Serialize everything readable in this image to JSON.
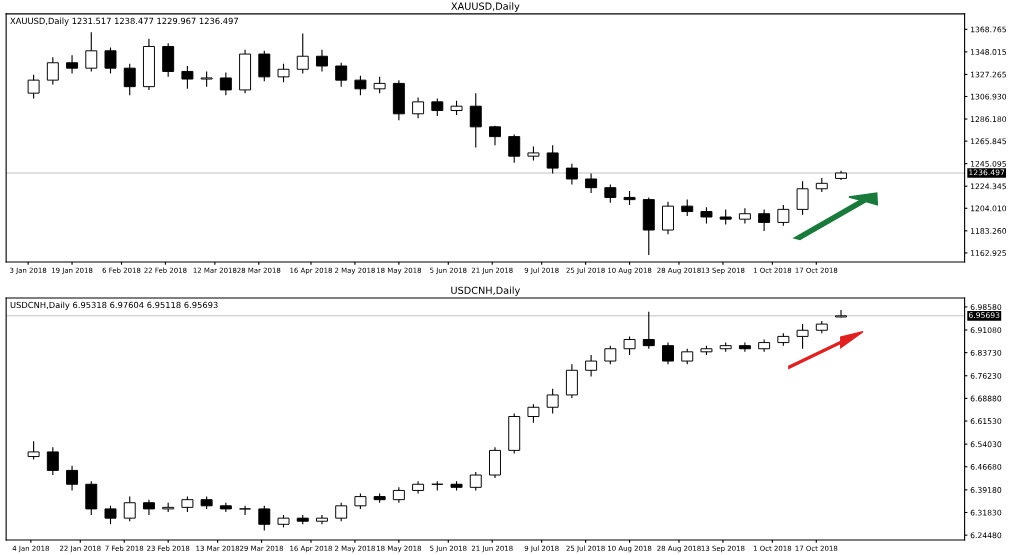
{
  "chart_data": [
    {
      "type": "candlestick",
      "title": "XAUUSD,Daily",
      "annotations": [
        "XAUUSD,Daily 1231.517 1238.477 1229.967 1236.497"
      ],
      "x": [
        "2018-01-05",
        "2018-01-12",
        "2018-01-19",
        "2018-01-26",
        "2018-02-02",
        "2018-02-09",
        "2018-02-16",
        "2018-02-23",
        "2018-03-02",
        "2018-03-09",
        "2018-03-16",
        "2018-03-23",
        "2018-03-30",
        "2018-04-06",
        "2018-04-13",
        "2018-04-20",
        "2018-04-27",
        "2018-05-04",
        "2018-05-11",
        "2018-05-18",
        "2018-05-25",
        "2018-06-01",
        "2018-06-08",
        "2018-06-15",
        "2018-06-22",
        "2018-06-29",
        "2018-07-06",
        "2018-07-13",
        "2018-07-20",
        "2018-07-27",
        "2018-08-03",
        "2018-08-10",
        "2018-08-17",
        "2018-08-24",
        "2018-08-31",
        "2018-09-07",
        "2018-09-14",
        "2018-09-21",
        "2018-09-28",
        "2018-10-05",
        "2018-10-12",
        "2018-10-19",
        "2018-10-26"
      ],
      "ohlc": [
        [
          1310,
          1327,
          1305,
          1322
        ],
        [
          1322,
          1343,
          1318,
          1338
        ],
        [
          1338,
          1345,
          1328,
          1333
        ],
        [
          1333,
          1366,
          1330,
          1349
        ],
        [
          1349,
          1352,
          1328,
          1333
        ],
        [
          1333,
          1337,
          1308,
          1316
        ],
        [
          1316,
          1360,
          1313,
          1353
        ],
        [
          1353,
          1356,
          1325,
          1330
        ],
        [
          1330,
          1335,
          1314,
          1323
        ],
        [
          1323,
          1330,
          1316,
          1324
        ],
        [
          1324,
          1329,
          1308,
          1313
        ],
        [
          1313,
          1350,
          1310,
          1346
        ],
        [
          1346,
          1349,
          1321,
          1325
        ],
        [
          1325,
          1337,
          1320,
          1332
        ],
        [
          1332,
          1365,
          1328,
          1344
        ],
        [
          1344,
          1350,
          1330,
          1335
        ],
        [
          1335,
          1338,
          1316,
          1322
        ],
        [
          1322,
          1326,
          1308,
          1314
        ],
        [
          1314,
          1325,
          1310,
          1319
        ],
        [
          1319,
          1322,
          1285,
          1291
        ],
        [
          1291,
          1306,
          1287,
          1302
        ],
        [
          1302,
          1305,
          1289,
          1294
        ],
        [
          1294,
          1303,
          1290,
          1298
        ],
        [
          1298,
          1310,
          1260,
          1279
        ],
        [
          1279,
          1280,
          1262,
          1270
        ],
        [
          1270,
          1272,
          1246,
          1252
        ],
        [
          1252,
          1261,
          1248,
          1255
        ],
        [
          1255,
          1262,
          1236,
          1241
        ],
        [
          1241,
          1245,
          1226,
          1231
        ],
        [
          1231,
          1236,
          1218,
          1223
        ],
        [
          1223,
          1226,
          1209,
          1214
        ],
        [
          1214,
          1220,
          1207,
          1212
        ],
        [
          1212,
          1214,
          1161,
          1184
        ],
        [
          1184,
          1210,
          1180,
          1206
        ],
        [
          1206,
          1212,
          1197,
          1201
        ],
        [
          1201,
          1205,
          1190,
          1196
        ],
        [
          1196,
          1203,
          1189,
          1194
        ],
        [
          1194,
          1204,
          1190,
          1199
        ],
        [
          1199,
          1203,
          1183,
          1191
        ],
        [
          1191,
          1207,
          1188,
          1203
        ],
        [
          1203,
          1229,
          1198,
          1222
        ],
        [
          1222,
          1232,
          1219,
          1227
        ],
        [
          1231.517,
          1238.477,
          1229.967,
          1236.497
        ]
      ],
      "xlim": [
        "2017-12-26",
        "2018-12-10"
      ],
      "xticks": [
        {
          "value": "2018-01-03",
          "label": "3 Jan 2018"
        },
        {
          "value": "2018-01-19",
          "label": "19 Jan 2018"
        },
        {
          "value": "2018-02-06",
          "label": "6 Feb 2018"
        },
        {
          "value": "2018-02-22",
          "label": "22 Feb 2018"
        },
        {
          "value": "2018-03-12",
          "label": "12 Mar 2018"
        },
        {
          "value": "2018-03-28",
          "label": "28 Mar 2018"
        },
        {
          "value": "2018-04-16",
          "label": "16 Apr 2018"
        },
        {
          "value": "2018-05-02",
          "label": "2 May 2018"
        },
        {
          "value": "2018-05-18",
          "label": "18 May 2018"
        },
        {
          "value": "2018-06-05",
          "label": "5 Jun 2018"
        },
        {
          "value": "2018-06-21",
          "label": "21 Jun 2018"
        },
        {
          "value": "2018-07-09",
          "label": "9 Jul 2018"
        },
        {
          "value": "2018-07-25",
          "label": "25 Jul 2018"
        },
        {
          "value": "2018-08-10",
          "label": "10 Aug 2018"
        },
        {
          "value": "2018-08-28",
          "label": "28 Aug 2018"
        },
        {
          "value": "2018-09-13",
          "label": "13 Sep 2018"
        },
        {
          "value": "2018-10-01",
          "label": "1 Oct 2018"
        },
        {
          "value": "2018-10-17",
          "label": "17 Oct 2018"
        }
      ],
      "ylim": [
        1154.6,
        1383
      ],
      "yticks": [
        {
          "value": 1162.925,
          "label": "1162.925"
        },
        {
          "value": 1183.26,
          "label": "1183.260"
        },
        {
          "value": 1204.01,
          "label": "1204.010"
        },
        {
          "value": 1224.345,
          "label": "1224.345"
        },
        {
          "value": 1245.095,
          "label": "1245.095"
        },
        {
          "value": 1265.845,
          "label": "1265.845"
        },
        {
          "value": 1286.18,
          "label": "1286.180"
        },
        {
          "value": 1306.93,
          "label": "1306.930"
        },
        {
          "value": 1327.265,
          "label": "1327.265"
        },
        {
          "value": 1348.015,
          "label": "1348.015"
        },
        {
          "value": 1368.765,
          "label": "1368.765"
        }
      ],
      "ref_lines": [
        {
          "axis": "y",
          "value": 1236.497,
          "label": "1236.497",
          "color": "#c0c0c0"
        }
      ],
      "grid": false,
      "legend": false
    },
    {
      "type": "candlestick",
      "title": "USDCNH,Daily",
      "annotations": [
        "USDCNH,Daily 6.95318 6.97604 6.95118 6.95693"
      ],
      "x": [
        "2018-01-05",
        "2018-01-12",
        "2018-01-19",
        "2018-01-26",
        "2018-02-02",
        "2018-02-09",
        "2018-02-16",
        "2018-02-23",
        "2018-03-02",
        "2018-03-09",
        "2018-03-16",
        "2018-03-23",
        "2018-03-30",
        "2018-04-06",
        "2018-04-13",
        "2018-04-20",
        "2018-04-27",
        "2018-05-04",
        "2018-05-11",
        "2018-05-18",
        "2018-05-25",
        "2018-06-01",
        "2018-06-08",
        "2018-06-15",
        "2018-06-22",
        "2018-06-29",
        "2018-07-06",
        "2018-07-13",
        "2018-07-20",
        "2018-07-27",
        "2018-08-03",
        "2018-08-10",
        "2018-08-17",
        "2018-08-24",
        "2018-08-31",
        "2018-09-07",
        "2018-09-14",
        "2018-09-21",
        "2018-09-28",
        "2018-10-05",
        "2018-10-12",
        "2018-10-19",
        "2018-10-26"
      ],
      "ohlc": [
        [
          6.5,
          6.55,
          6.49,
          6.515
        ],
        [
          6.515,
          6.53,
          6.44,
          6.455
        ],
        [
          6.455,
          6.47,
          6.39,
          6.41
        ],
        [
          6.41,
          6.42,
          6.31,
          6.33
        ],
        [
          6.33,
          6.34,
          6.28,
          6.3
        ],
        [
          6.3,
          6.37,
          6.29,
          6.35
        ],
        [
          6.35,
          6.36,
          6.31,
          6.33
        ],
        [
          6.33,
          6.35,
          6.32,
          6.335
        ],
        [
          6.335,
          6.37,
          6.32,
          6.36
        ],
        [
          6.36,
          6.37,
          6.33,
          6.34
        ],
        [
          6.34,
          6.35,
          6.32,
          6.33
        ],
        [
          6.33,
          6.34,
          6.31,
          6.33
        ],
        [
          6.33,
          6.34,
          6.26,
          6.28
        ],
        [
          6.28,
          6.31,
          6.27,
          6.3
        ],
        [
          6.3,
          6.31,
          6.28,
          6.29
        ],
        [
          6.29,
          6.31,
          6.28,
          6.3
        ],
        [
          6.3,
          6.35,
          6.29,
          6.34
        ],
        [
          6.34,
          6.38,
          6.33,
          6.37
        ],
        [
          6.37,
          6.38,
          6.35,
          6.36
        ],
        [
          6.36,
          6.4,
          6.35,
          6.39
        ],
        [
          6.39,
          6.42,
          6.38,
          6.41
        ],
        [
          6.41,
          6.42,
          6.39,
          6.41
        ],
        [
          6.41,
          6.42,
          6.39,
          6.4
        ],
        [
          6.4,
          6.45,
          6.39,
          6.44
        ],
        [
          6.44,
          6.53,
          6.43,
          6.52
        ],
        [
          6.52,
          6.64,
          6.51,
          6.63
        ],
        [
          6.63,
          6.67,
          6.61,
          6.66
        ],
        [
          6.66,
          6.72,
          6.64,
          6.7
        ],
        [
          6.7,
          6.8,
          6.69,
          6.78
        ],
        [
          6.78,
          6.83,
          6.76,
          6.81
        ],
        [
          6.81,
          6.86,
          6.8,
          6.85
        ],
        [
          6.85,
          6.89,
          6.83,
          6.88
        ],
        [
          6.88,
          6.97,
          6.85,
          6.86
        ],
        [
          6.86,
          6.87,
          6.8,
          6.81
        ],
        [
          6.81,
          6.85,
          6.8,
          6.84
        ],
        [
          6.84,
          6.86,
          6.83,
          6.85
        ],
        [
          6.85,
          6.87,
          6.84,
          6.86
        ],
        [
          6.86,
          6.87,
          6.84,
          6.85
        ],
        [
          6.85,
          6.88,
          6.84,
          6.87
        ],
        [
          6.87,
          6.9,
          6.86,
          6.89
        ],
        [
          6.89,
          6.93,
          6.85,
          6.91
        ],
        [
          6.91,
          6.94,
          6.9,
          6.93
        ],
        [
          6.95318,
          6.97604,
          6.95118,
          6.95693
        ]
      ],
      "xlim": [
        "2017-12-26",
        "2018-12-10"
      ],
      "xticks": [
        {
          "value": "2018-01-04",
          "label": "4 Jan 2018"
        },
        {
          "value": "2018-01-22",
          "label": "22 Jan 2018"
        },
        {
          "value": "2018-02-07",
          "label": "7 Feb 2018"
        },
        {
          "value": "2018-02-23",
          "label": "23 Feb 2018"
        },
        {
          "value": "2018-03-13",
          "label": "13 Mar 2018"
        },
        {
          "value": "2018-03-29",
          "label": "29 Mar 2018"
        },
        {
          "value": "2018-04-16",
          "label": "16 Apr 2018"
        },
        {
          "value": "2018-05-02",
          "label": "2 May 2018"
        },
        {
          "value": "2018-05-18",
          "label": "18 May 2018"
        },
        {
          "value": "2018-06-05",
          "label": "5 Jun 2018"
        },
        {
          "value": "2018-06-21",
          "label": "21 Jun 2018"
        },
        {
          "value": "2018-07-09",
          "label": "9 Jul 2018"
        },
        {
          "value": "2018-07-25",
          "label": "25 Jul 2018"
        },
        {
          "value": "2018-08-10",
          "label": "10 Aug 2018"
        },
        {
          "value": "2018-08-28",
          "label": "28 Aug 2018"
        },
        {
          "value": "2018-09-13",
          "label": "13 Sep 2018"
        },
        {
          "value": "2018-10-01",
          "label": "1 Oct 2018"
        },
        {
          "value": "2018-10-17",
          "label": "17 Oct 2018"
        }
      ],
      "ylim": [
        6.229,
        7.0146
      ],
      "yticks": [
        {
          "value": 6.2448,
          "label": "6.24480"
        },
        {
          "value": 6.3183,
          "label": "6.31830"
        },
        {
          "value": 6.3918,
          "label": "6.39180"
        },
        {
          "value": 6.4668,
          "label": "6.46680"
        },
        {
          "value": 6.5403,
          "label": "6.54030"
        },
        {
          "value": 6.6153,
          "label": "6.61530"
        },
        {
          "value": 6.6888,
          "label": "6.68880"
        },
        {
          "value": 6.7623,
          "label": "6.76230"
        },
        {
          "value": 6.8373,
          "label": "6.83730"
        },
        {
          "value": 6.9108,
          "label": "6.91080"
        },
        {
          "value": 6.9858,
          "label": "6.98580"
        }
      ],
      "ref_lines": [
        {
          "axis": "y",
          "value": 6.95693,
          "label": "6.95693",
          "color": "#c0c0c0"
        }
      ],
      "grid": false,
      "legend": false
    }
  ]
}
